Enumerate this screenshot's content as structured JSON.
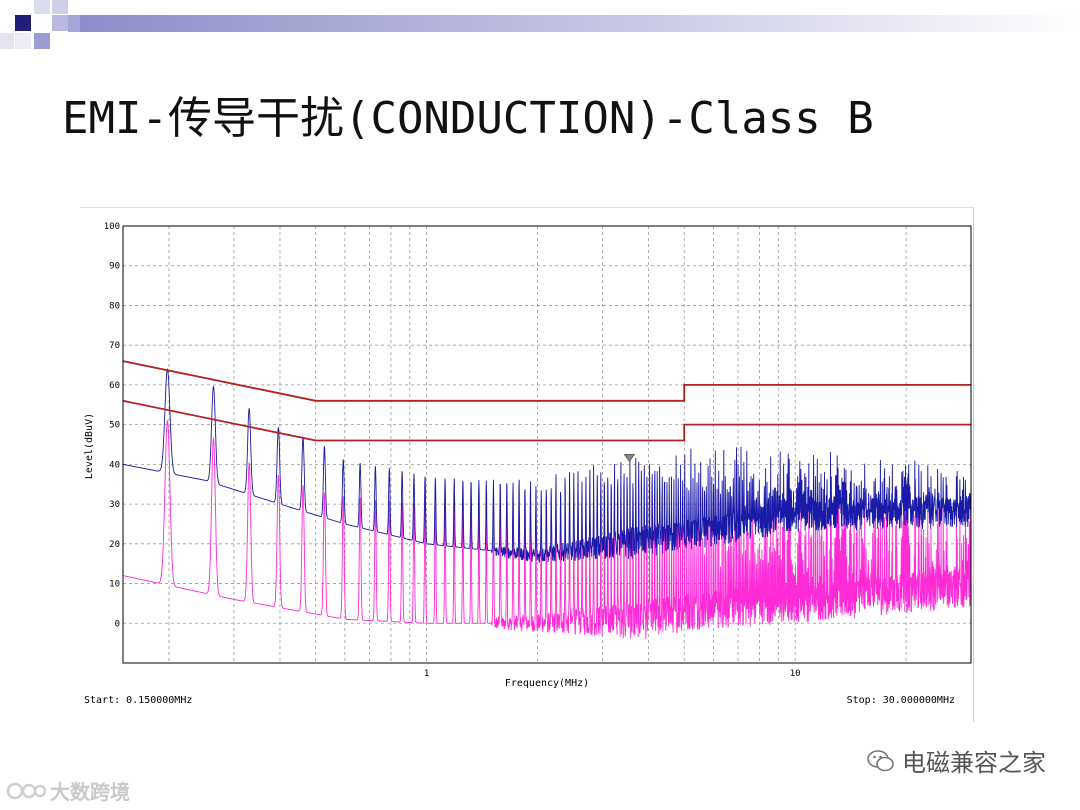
{
  "slide": {
    "title": "EMI-传导干扰(CONDUCTION)-Class B"
  },
  "colors": {
    "peak_trace": "#1a1aa8",
    "avg_trace": "#ff2bd6",
    "limit": "#b22020",
    "grid": "#9a9a9a",
    "deco_dark": "#1f1f7a",
    "deco_light": "#9b9bd6"
  },
  "chart_data": {
    "type": "line",
    "xscale": "log",
    "xlim": [
      0.15,
      30
    ],
    "ylim": [
      -10,
      100
    ],
    "xlabel": "Frequency(MHz)",
    "ylabel": "Level(dBuV)",
    "yticks": [
      0,
      10,
      20,
      30,
      40,
      50,
      60,
      70,
      80,
      90,
      100
    ],
    "xtick_labels": [
      {
        "x": 1,
        "label": "1"
      },
      {
        "x": 10,
        "label": "10"
      }
    ],
    "start_label": "Start: 0.150000MHz",
    "stop_label": "Stop: 30.000000MHz",
    "limit_lines": [
      {
        "points": [
          [
            0.15,
            66
          ],
          [
            0.5,
            56
          ],
          [
            5,
            56
          ],
          [
            5,
            60
          ],
          [
            30,
            60
          ]
        ]
      },
      {
        "points": [
          [
            0.15,
            56
          ],
          [
            0.5,
            46
          ],
          [
            5,
            46
          ],
          [
            5,
            50
          ],
          [
            30,
            50
          ]
        ]
      }
    ],
    "marker": {
      "x": 3.55,
      "y": 41
    },
    "series": [
      {
        "style": "peak",
        "harmonic_peaks": [
          [
            0.2,
            64
          ],
          [
            0.26,
            60
          ],
          [
            0.32,
            55
          ],
          [
            0.38,
            50
          ],
          [
            0.46,
            47
          ],
          [
            0.52,
            45
          ],
          [
            0.6,
            41
          ],
          [
            0.8,
            39
          ],
          [
            1.0,
            37
          ],
          [
            2.0,
            35
          ],
          [
            3.5,
            40
          ],
          [
            5.0,
            41
          ],
          [
            10.0,
            40
          ],
          [
            30.0,
            36
          ]
        ],
        "floor": [
          [
            0.15,
            40
          ],
          [
            0.25,
            36
          ],
          [
            0.4,
            30
          ],
          [
            0.6,
            25
          ],
          [
            1.0,
            20
          ],
          [
            2.0,
            17
          ],
          [
            5.0,
            22
          ],
          [
            10.0,
            27
          ],
          [
            30.0,
            28
          ]
        ]
      },
      {
        "style": "average",
        "harmonic_peaks": [
          [
            0.2,
            51
          ],
          [
            0.26,
            47
          ],
          [
            0.32,
            41
          ],
          [
            0.38,
            38
          ],
          [
            0.46,
            35
          ],
          [
            0.52,
            33
          ],
          [
            0.6,
            32
          ],
          [
            1.0,
            30
          ],
          [
            2.0,
            30
          ],
          [
            3.5,
            31
          ],
          [
            5.0,
            33
          ],
          [
            10.0,
            30
          ],
          [
            30.0,
            27
          ]
        ],
        "floor": [
          [
            0.15,
            12
          ],
          [
            0.3,
            6
          ],
          [
            0.6,
            1
          ],
          [
            1.0,
            0
          ],
          [
            2.0,
            0
          ],
          [
            4.0,
            1
          ],
          [
            5.0,
            3
          ],
          [
            10.0,
            5
          ],
          [
            30.0,
            9
          ]
        ]
      }
    ]
  },
  "watermark": {
    "text": "电磁兼容之家",
    "secondary": "大数跨境"
  }
}
